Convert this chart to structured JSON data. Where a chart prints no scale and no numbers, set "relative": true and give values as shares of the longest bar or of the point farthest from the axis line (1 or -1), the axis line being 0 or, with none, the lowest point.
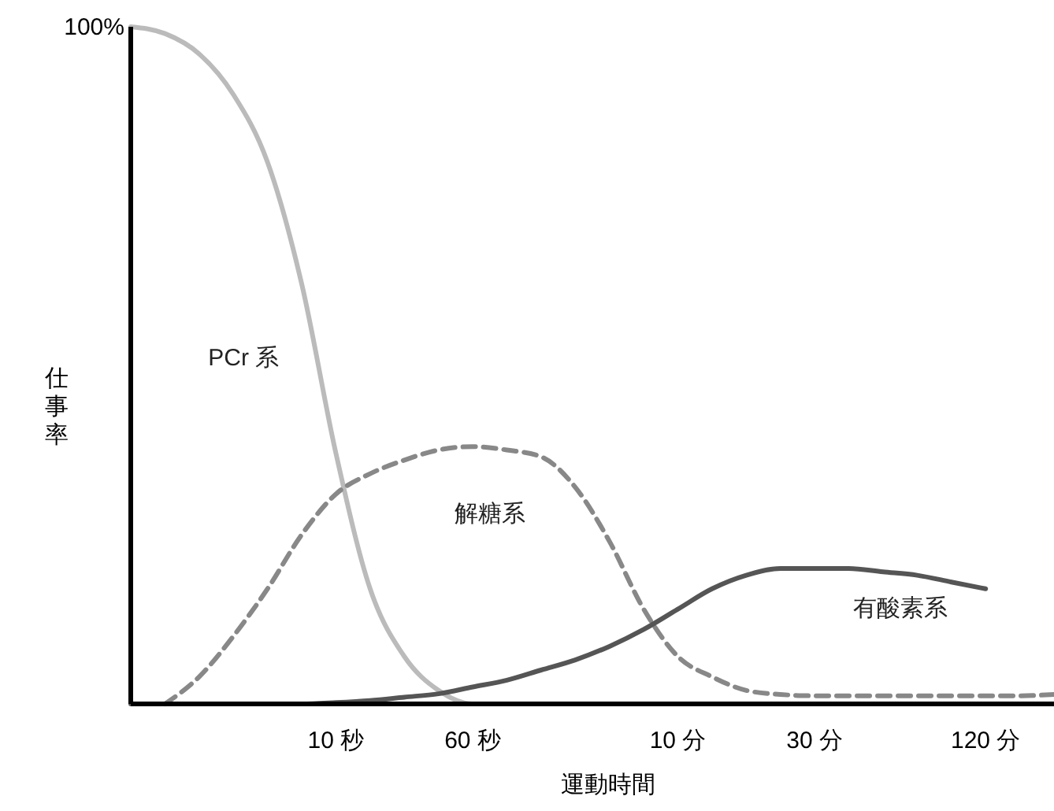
{
  "chart_data": {
    "type": "line",
    "relative": true,
    "xlabel": "運動時間",
    "ylabel": "仕事率",
    "categories": [
      null,
      null,
      null,
      null,
      null,
      null,
      "10 秒",
      null,
      null,
      null,
      "60 秒",
      null,
      null,
      null,
      null,
      null,
      "10 分",
      null,
      null,
      null,
      "30 分",
      null,
      null,
      null,
      null,
      "120 分",
      null,
      null
    ],
    "annotations": [
      "100%"
    ],
    "legend": false,
    "grid": false,
    "marker": "none",
    "series": [
      {
        "name": "PCr 系",
        "color": "#bbbbbb",
        "line_style": "solid",
        "values": [
          1,
          0.99,
          0.96,
          0.9,
          0.8,
          0.62,
          0.37,
          0.17,
          0.07,
          0.02,
          0,
          0,
          null,
          null,
          null,
          null,
          null,
          null,
          null,
          null,
          null,
          null,
          null,
          null,
          null,
          null,
          null,
          null
        ]
      },
      {
        "name": "解糖系",
        "color": "#888888",
        "line_style": "dashed",
        "values": [
          null,
          0,
          0.04,
          0.1,
          0.17,
          0.25,
          0.31,
          0.34,
          0.36,
          0.375,
          0.38,
          0.375,
          0.365,
          0.32,
          0.24,
          0.14,
          0.07,
          0.04,
          0.02,
          0.014,
          0.012,
          0.012,
          0.012,
          0.012,
          0.012,
          0.012,
          0.012,
          0.014
        ]
      },
      {
        "name": "有酸素系",
        "color": "#555555",
        "line_style": "solid",
        "values": [
          0,
          0,
          0,
          0,
          0,
          0,
          0.002,
          0.005,
          0.01,
          0.015,
          0.025,
          0.035,
          0.05,
          0.065,
          0.085,
          0.11,
          0.14,
          0.17,
          0.19,
          0.2,
          0.2,
          0.2,
          0.195,
          0.19,
          0.18,
          0.17,
          null,
          null
        ]
      }
    ]
  }
}
